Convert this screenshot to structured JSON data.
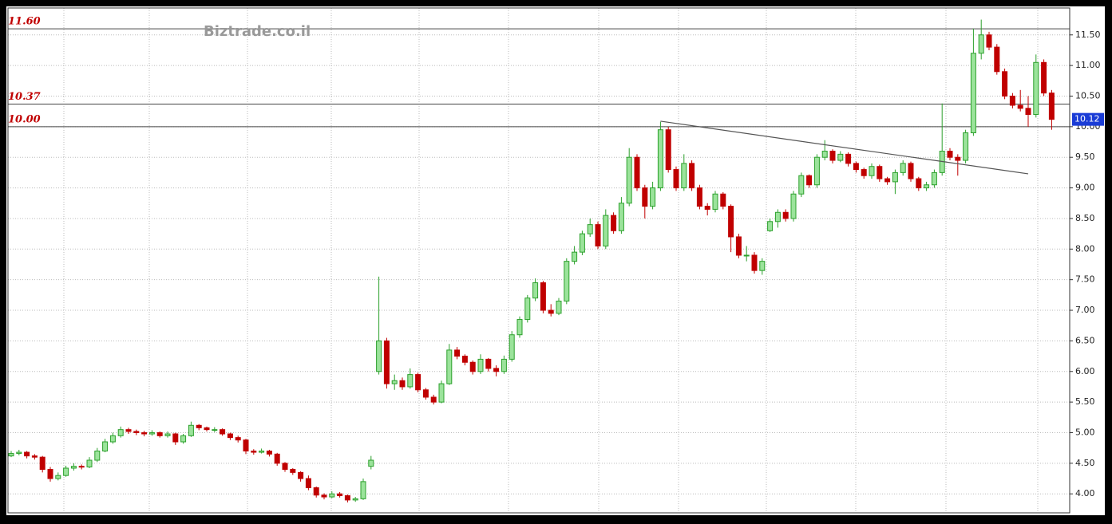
{
  "chart_data": {
    "type": "candlestick",
    "watermark": "Biztrade.co.il",
    "ylim": [
      3.69,
      11.94
    ],
    "yticks": [
      {
        "value": 4,
        "label": "4.00"
      },
      {
        "value": 4.5,
        "label": "4.50"
      },
      {
        "value": 5,
        "label": "5.00"
      },
      {
        "value": 5.5,
        "label": "5.50"
      },
      {
        "value": 6,
        "label": "6.00"
      },
      {
        "value": 6.5,
        "label": "6.50"
      },
      {
        "value": 7,
        "label": "7.00"
      },
      {
        "value": 7.5,
        "label": "7.50"
      },
      {
        "value": 8,
        "label": "8.00"
      },
      {
        "value": 8.5,
        "label": "8.50"
      },
      {
        "value": 9,
        "label": "9.00"
      },
      {
        "value": 9.5,
        "label": "9.50"
      },
      {
        "value": 10,
        "label": "10.00"
      },
      {
        "value": 10.5,
        "label": "10.50"
      },
      {
        "value": 11,
        "label": "11.00"
      },
      {
        "value": 11.5,
        "label": "11.50"
      }
    ],
    "grid": true,
    "up_color": "#2ca02c",
    "down_color": "#c00000",
    "levels": [
      {
        "value": 11.6,
        "label": "11.60"
      },
      {
        "value": 10.37,
        "label": "10.37"
      },
      {
        "value": 10,
        "label": "10.00"
      }
    ],
    "last_price": 10.12,
    "trendline": {
      "x": [
        83,
        130
      ],
      "values": [
        10.09,
        9.23
      ]
    },
    "candles": [
      [
        4.62,
        4.7,
        4.6,
        4.66
      ],
      [
        4.66,
        4.72,
        4.63,
        4.68
      ],
      [
        4.68,
        4.7,
        4.58,
        4.62
      ],
      [
        4.62,
        4.65,
        4.56,
        4.6
      ],
      [
        4.6,
        4.62,
        4.35,
        4.4
      ],
      [
        4.4,
        4.44,
        4.2,
        4.25
      ],
      [
        4.25,
        4.35,
        4.22,
        4.3
      ],
      [
        4.3,
        4.46,
        4.28,
        4.42
      ],
      [
        4.42,
        4.5,
        4.38,
        4.45
      ],
      [
        4.45,
        4.48,
        4.4,
        4.44
      ],
      [
        4.44,
        4.6,
        4.42,
        4.55
      ],
      [
        4.55,
        4.75,
        4.52,
        4.7
      ],
      [
        4.7,
        4.9,
        4.68,
        4.85
      ],
      [
        4.85,
        5.0,
        4.82,
        4.95
      ],
      [
        4.95,
        5.1,
        4.92,
        5.05
      ],
      [
        5.05,
        5.08,
        4.98,
        5.02
      ],
      [
        5.02,
        5.05,
        4.96,
        5.0
      ],
      [
        5.0,
        5.03,
        4.94,
        4.98
      ],
      [
        4.98,
        5.04,
        4.95,
        5.0
      ],
      [
        5.0,
        5.02,
        4.92,
        4.95
      ],
      [
        4.95,
        5.02,
        4.92,
        4.98
      ],
      [
        4.98,
        5.0,
        4.8,
        4.85
      ],
      [
        4.85,
        4.98,
        4.82,
        4.95
      ],
      [
        4.95,
        5.18,
        4.93,
        5.12
      ],
      [
        5.12,
        5.14,
        5.04,
        5.08
      ],
      [
        5.08,
        5.1,
        5.02,
        5.05
      ],
      [
        5.05,
        5.09,
        5.01,
        5.05
      ],
      [
        5.05,
        5.07,
        4.95,
        4.98
      ],
      [
        4.98,
        5.0,
        4.88,
        4.92
      ],
      [
        4.92,
        4.95,
        4.84,
        4.88
      ],
      [
        4.88,
        4.9,
        4.65,
        4.7
      ],
      [
        4.7,
        4.73,
        4.64,
        4.68
      ],
      [
        4.68,
        4.74,
        4.66,
        4.7
      ],
      [
        4.7,
        4.72,
        4.61,
        4.65
      ],
      [
        4.65,
        4.67,
        4.46,
        4.5
      ],
      [
        4.5,
        4.52,
        4.36,
        4.4
      ],
      [
        4.4,
        4.42,
        4.31,
        4.35
      ],
      [
        4.35,
        4.37,
        4.2,
        4.25
      ],
      [
        4.25,
        4.3,
        4.06,
        4.1
      ],
      [
        4.1,
        4.12,
        3.94,
        3.98
      ],
      [
        3.98,
        4.01,
        3.91,
        3.95
      ],
      [
        3.95,
        4.04,
        3.93,
        4.0
      ],
      [
        4.0,
        4.03,
        3.94,
        3.97
      ],
      [
        3.97,
        3.99,
        3.86,
        3.9
      ],
      [
        3.9,
        3.95,
        3.87,
        3.92
      ],
      [
        3.92,
        4.25,
        3.9,
        4.2
      ],
      [
        4.45,
        4.62,
        4.4,
        4.55
      ],
      [
        6.0,
        7.55,
        5.95,
        6.5
      ],
      [
        6.5,
        6.55,
        5.72,
        5.8
      ],
      [
        5.8,
        5.95,
        5.7,
        5.85
      ],
      [
        5.85,
        5.9,
        5.7,
        5.75
      ],
      [
        5.75,
        6.05,
        5.72,
        5.95
      ],
      [
        5.95,
        5.98,
        5.66,
        5.7
      ],
      [
        5.7,
        5.73,
        5.54,
        5.58
      ],
      [
        5.58,
        5.62,
        5.46,
        5.5
      ],
      [
        5.5,
        5.85,
        5.48,
        5.8
      ],
      [
        5.8,
        6.45,
        5.78,
        6.35
      ],
      [
        6.35,
        6.4,
        6.2,
        6.25
      ],
      [
        6.25,
        6.28,
        6.1,
        6.15
      ],
      [
        6.15,
        6.18,
        5.95,
        6.0
      ],
      [
        6.0,
        6.28,
        5.96,
        6.2
      ],
      [
        6.2,
        6.22,
        6.0,
        6.05
      ],
      [
        6.05,
        6.1,
        5.92,
        6.0
      ],
      [
        6.0,
        6.26,
        5.96,
        6.2
      ],
      [
        6.2,
        6.66,
        6.16,
        6.6
      ],
      [
        6.6,
        6.9,
        6.55,
        6.85
      ],
      [
        6.85,
        7.25,
        6.8,
        7.2
      ],
      [
        7.2,
        7.52,
        7.15,
        7.45
      ],
      [
        7.45,
        7.48,
        6.95,
        7.0
      ],
      [
        7.0,
        7.1,
        6.9,
        6.95
      ],
      [
        6.95,
        7.2,
        6.92,
        7.15
      ],
      [
        7.15,
        7.85,
        7.1,
        7.8
      ],
      [
        7.8,
        8.05,
        7.75,
        7.95
      ],
      [
        7.95,
        8.3,
        7.9,
        8.25
      ],
      [
        8.25,
        8.5,
        8.2,
        8.4
      ],
      [
        8.4,
        8.45,
        8.0,
        8.05
      ],
      [
        8.05,
        8.65,
        8.0,
        8.55
      ],
      [
        8.55,
        8.6,
        8.25,
        8.3
      ],
      [
        8.3,
        8.85,
        8.25,
        8.75
      ],
      [
        8.75,
        9.65,
        8.7,
        9.5
      ],
      [
        9.5,
        9.55,
        8.95,
        9.0
      ],
      [
        9.0,
        9.05,
        8.5,
        8.7
      ],
      [
        8.7,
        9.1,
        8.65,
        9.0
      ],
      [
        9.0,
        10.08,
        8.95,
        9.95
      ],
      [
        9.95,
        10.0,
        9.25,
        9.3
      ],
      [
        9.3,
        9.35,
        8.95,
        9.0
      ],
      [
        9.0,
        9.55,
        8.95,
        9.4
      ],
      [
        9.4,
        9.45,
        8.95,
        9.0
      ],
      [
        9.0,
        9.05,
        8.65,
        8.7
      ],
      [
        8.7,
        8.75,
        8.55,
        8.65
      ],
      [
        8.65,
        8.95,
        8.6,
        8.9
      ],
      [
        8.9,
        8.93,
        8.65,
        8.7
      ],
      [
        8.7,
        8.73,
        7.95,
        8.2
      ],
      [
        8.2,
        8.25,
        7.85,
        7.9
      ],
      [
        7.9,
        8.05,
        7.8,
        7.9
      ],
      [
        7.9,
        7.95,
        7.6,
        7.65
      ],
      [
        7.65,
        7.85,
        7.58,
        7.8
      ],
      [
        8.3,
        8.5,
        8.28,
        8.45
      ],
      [
        8.45,
        8.65,
        8.35,
        8.6
      ],
      [
        8.6,
        8.65,
        8.45,
        8.5
      ],
      [
        8.5,
        8.95,
        8.45,
        8.9
      ],
      [
        8.9,
        9.25,
        8.85,
        9.2
      ],
      [
        9.2,
        9.22,
        9.0,
        9.05
      ],
      [
        9.05,
        9.55,
        9.0,
        9.5
      ],
      [
        9.5,
        9.78,
        9.45,
        9.6
      ],
      [
        9.6,
        9.63,
        9.4,
        9.45
      ],
      [
        9.45,
        9.6,
        9.42,
        9.55
      ],
      [
        9.55,
        9.58,
        9.35,
        9.4
      ],
      [
        9.4,
        9.43,
        9.25,
        9.3
      ],
      [
        9.3,
        9.33,
        9.15,
        9.2
      ],
      [
        9.2,
        9.4,
        9.15,
        9.35
      ],
      [
        9.35,
        9.38,
        9.1,
        9.15
      ],
      [
        9.15,
        9.18,
        9.05,
        9.1
      ],
      [
        9.1,
        9.3,
        8.9,
        9.25
      ],
      [
        9.25,
        9.45,
        9.2,
        9.4
      ],
      [
        9.4,
        9.43,
        9.1,
        9.15
      ],
      [
        9.15,
        9.18,
        8.95,
        9.0
      ],
      [
        9.0,
        9.1,
        8.95,
        9.05
      ],
      [
        9.05,
        9.3,
        9.0,
        9.25
      ],
      [
        9.25,
        10.38,
        9.2,
        9.6
      ],
      [
        9.6,
        9.65,
        9.45,
        9.5
      ],
      [
        9.5,
        9.55,
        9.2,
        9.45
      ],
      [
        9.45,
        9.95,
        9.4,
        9.9
      ],
      [
        9.9,
        11.6,
        9.85,
        11.2
      ],
      [
        11.2,
        11.75,
        11.1,
        11.5
      ],
      [
        11.5,
        11.55,
        11.25,
        11.3
      ],
      [
        11.3,
        11.35,
        10.85,
        10.9
      ],
      [
        10.9,
        10.95,
        10.45,
        10.5
      ],
      [
        10.5,
        10.55,
        10.3,
        10.35
      ],
      [
        10.35,
        10.6,
        10.25,
        10.3
      ],
      [
        10.3,
        10.5,
        10.0,
        10.2
      ],
      [
        10.2,
        11.18,
        10.15,
        11.05
      ],
      [
        11.05,
        11.1,
        10.5,
        10.55
      ],
      [
        10.55,
        10.6,
        9.95,
        10.12
      ]
    ]
  }
}
